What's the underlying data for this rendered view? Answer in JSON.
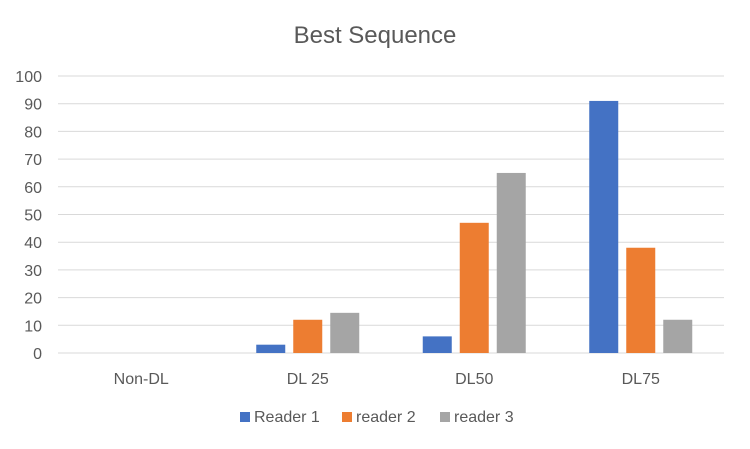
{
  "chart_data": {
    "type": "bar",
    "title": "Best Sequence",
    "xlabel": "",
    "ylabel": "",
    "ylim": [
      0,
      100
    ],
    "yticks": [
      0,
      10,
      20,
      30,
      40,
      50,
      60,
      70,
      80,
      90,
      100
    ],
    "grid": true,
    "legend_position": "bottom",
    "categories": [
      "Non-DL",
      "DL 25",
      "DL50",
      "DL75"
    ],
    "series": [
      {
        "name": "Reader 1",
        "color": "#4472c4",
        "values": [
          0,
          3,
          6,
          91
        ]
      },
      {
        "name": "reader 2",
        "color": "#ed7d31",
        "values": [
          0,
          12,
          47,
          38
        ]
      },
      {
        "name": "reader 3",
        "color": "#a5a5a5",
        "values": [
          0,
          14.5,
          65,
          12
        ]
      }
    ]
  }
}
